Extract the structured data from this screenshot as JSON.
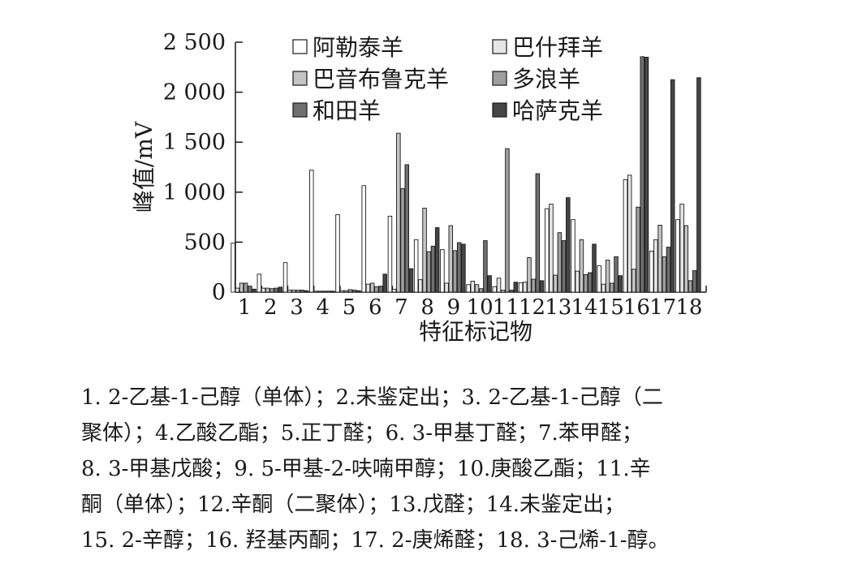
{
  "chart_data": {
    "type": "bar",
    "ylabel": "峰值/mV",
    "xlabel": "特征标记物",
    "ylim": [
      0,
      2500
    ],
    "yticks": [
      0,
      500,
      1000,
      1500,
      2000,
      2500
    ],
    "ytick_labels": [
      "0",
      "500",
      "1 000",
      "1 500",
      "2 000",
      "2 500"
    ],
    "categories": [
      "1",
      "2",
      "3",
      "4",
      "5",
      "6",
      "7",
      "8",
      "9",
      "10",
      "11",
      "12",
      "13",
      "14",
      "15",
      "16",
      "17",
      "18"
    ],
    "legend_position": "top-center",
    "series": [
      {
        "name": "阿勒泰羊",
        "color": "#ffffff",
        "values": [
          490,
          180,
          295,
          1220,
          775,
          1065,
          760,
          525,
          425,
          75,
          55,
          95,
          835,
          725,
          265,
          1125,
          410,
          725
        ]
      },
      {
        "name": "巴什拜羊",
        "color": "#e6e6e6",
        "values": [
          40,
          40,
          20,
          10,
          15,
          80,
          30,
          125,
          90,
          110,
          140,
          100,
          880,
          210,
          80,
          1170,
          525,
          880
        ]
      },
      {
        "name": "巴音布鲁克羊",
        "color": "#c4c4c4",
        "values": [
          90,
          40,
          20,
          10,
          15,
          90,
          1590,
          840,
          665,
          75,
          20,
          345,
          170,
          525,
          320,
          230,
          670,
          665
        ]
      },
      {
        "name": "多浪羊",
        "color": "#9e9e9e",
        "values": [
          90,
          35,
          20,
          10,
          25,
          55,
          1035,
          405,
          415,
          35,
          1435,
          130,
          595,
          175,
          90,
          850,
          355,
          115
        ]
      },
      {
        "name": "和田羊",
        "color": "#6f6f6f",
        "values": [
          60,
          40,
          20,
          10,
          20,
          60,
          1275,
          460,
          495,
          515,
          20,
          1185,
          515,
          195,
          355,
          2355,
          450,
          215
        ]
      },
      {
        "name": "哈萨克羊",
        "color": "#454545",
        "values": [
          30,
          50,
          15,
          10,
          15,
          180,
          235,
          645,
          480,
          165,
          100,
          115,
          945,
          480,
          165,
          2350,
          2125,
          2145
        ]
      }
    ]
  },
  "caption_lines": [
    "1. 2-乙基-1-己醇（单体）；2.未鉴定出；3. 2-乙基-1-己醇（二",
    "聚体）；4.乙酸乙酯；5.正丁醛；6. 3-甲基丁醛；7.苯甲醛；",
    "8. 3-甲基戊酸；9. 5-甲基-2-呋喃甲醇；10.庚酸乙酯；11.辛",
    "酮（单体）；12.辛酮（二聚体）；13.戊醛；14.未鉴定出；",
    "15. 2-辛醇；16. 羟基丙酮；17. 2-庚烯醛；18. 3-己烯-1-醇。"
  ]
}
